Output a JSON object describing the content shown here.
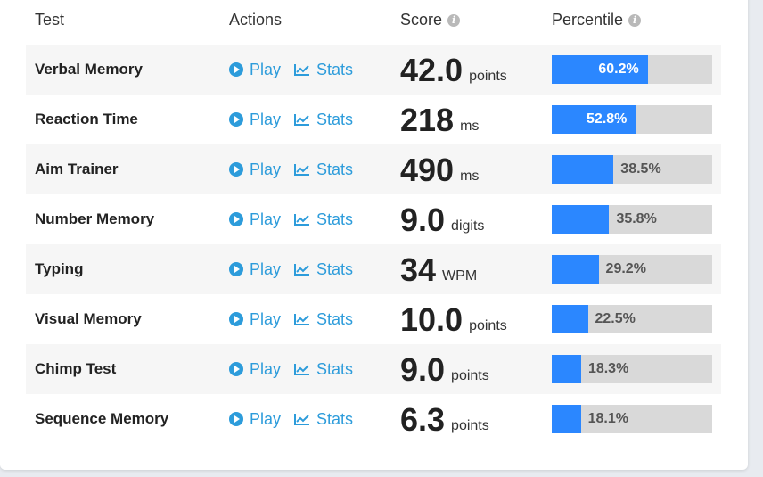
{
  "colors": {
    "accent": "#2d9cdb",
    "bar_fill": "#2b87ff",
    "bar_track": "#d9d9d9",
    "row_stripe": "#f6f6f6"
  },
  "header": {
    "test": "Test",
    "actions": "Actions",
    "score": "Score",
    "percentile": "Percentile"
  },
  "labels": {
    "play": "Play",
    "stats": "Stats"
  },
  "rows": [
    {
      "name": "Verbal Memory",
      "score": "42.0",
      "unit": "points",
      "percentile": 60.2,
      "percentile_label": "60.2%"
    },
    {
      "name": "Reaction Time",
      "score": "218",
      "unit": "ms",
      "percentile": 52.8,
      "percentile_label": "52.8%"
    },
    {
      "name": "Aim Trainer",
      "score": "490",
      "unit": "ms",
      "percentile": 38.5,
      "percentile_label": "38.5%"
    },
    {
      "name": "Number Memory",
      "score": "9.0",
      "unit": "digits",
      "percentile": 35.8,
      "percentile_label": "35.8%"
    },
    {
      "name": "Typing",
      "score": "34",
      "unit": "WPM",
      "percentile": 29.2,
      "percentile_label": "29.2%"
    },
    {
      "name": "Visual Memory",
      "score": "10.0",
      "unit": "points",
      "percentile": 22.5,
      "percentile_label": "22.5%"
    },
    {
      "name": "Chimp Test",
      "score": "9.0",
      "unit": "points",
      "percentile": 18.3,
      "percentile_label": "18.3%"
    },
    {
      "name": "Sequence Memory",
      "score": "6.3",
      "unit": "points",
      "percentile": 18.1,
      "percentile_label": "18.1%"
    }
  ]
}
